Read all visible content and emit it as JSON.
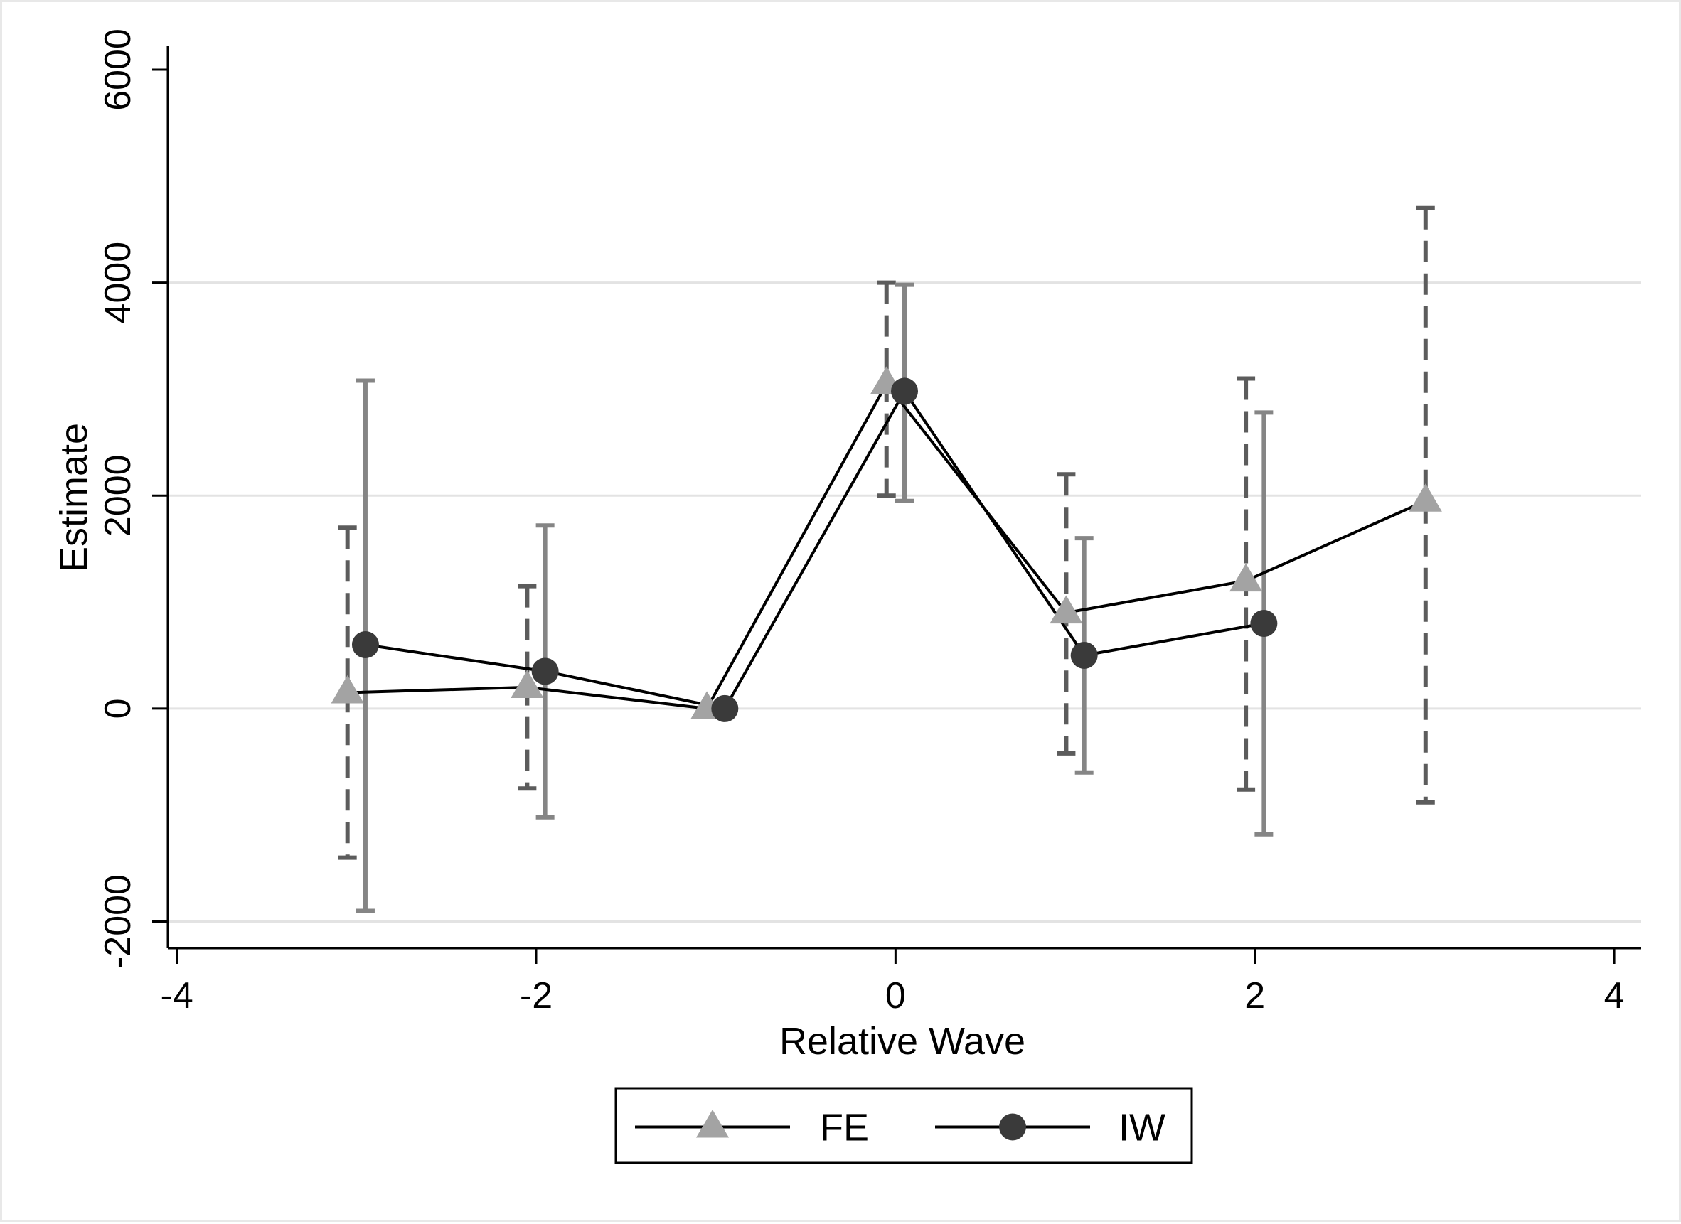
{
  "chart_data": {
    "type": "line",
    "xlabel": "Relative Wave",
    "ylabel": "Estimate",
    "xlim": [
      -4.05,
      4.15
    ],
    "ylim": [
      -2250,
      6220
    ],
    "xticks": [
      -4,
      -2,
      0,
      2,
      4
    ],
    "yticks": [
      -2000,
      0,
      2000,
      4000,
      6000
    ],
    "grid": "horizontal",
    "legend_position": "bottom-center",
    "series": [
      {
        "name": "FE",
        "marker": "triangle",
        "color": "#a3a3a3",
        "line_color": "#000000",
        "ci_color": "#5c5c5c",
        "ci_style": "dashed",
        "x_offset": -0.05,
        "points": [
          {
            "x": -3,
            "y": 150,
            "lo": -1400,
            "hi": 1700
          },
          {
            "x": -2,
            "y": 200,
            "lo": -750,
            "hi": 1150
          },
          {
            "x": -1,
            "y": 0,
            "lo": null,
            "hi": null
          },
          {
            "x": 0,
            "y": 3050,
            "lo": 2000,
            "hi": 4000
          },
          {
            "x": 1,
            "y": 900,
            "lo": -420,
            "hi": 2200
          },
          {
            "x": 2,
            "y": 1200,
            "lo": -760,
            "hi": 3100
          },
          {
            "x": 3,
            "y": 1950,
            "lo": -880,
            "hi": 4700
          }
        ]
      },
      {
        "name": "IW",
        "marker": "circle",
        "color": "#3a3a3a",
        "line_color": "#000000",
        "ci_color": "#858585",
        "ci_style": "solid",
        "x_offset": 0.05,
        "points": [
          {
            "x": -3,
            "y": 600,
            "lo": -1900,
            "hi": 3080
          },
          {
            "x": -2,
            "y": 350,
            "lo": -1020,
            "hi": 1720
          },
          {
            "x": -1,
            "y": 0,
            "lo": null,
            "hi": null
          },
          {
            "x": 0,
            "y": 2980,
            "lo": 1950,
            "hi": 3980
          },
          {
            "x": 1,
            "y": 500,
            "lo": -600,
            "hi": 1600
          },
          {
            "x": 2,
            "y": 800,
            "lo": -1180,
            "hi": 2780
          }
        ]
      }
    ]
  }
}
